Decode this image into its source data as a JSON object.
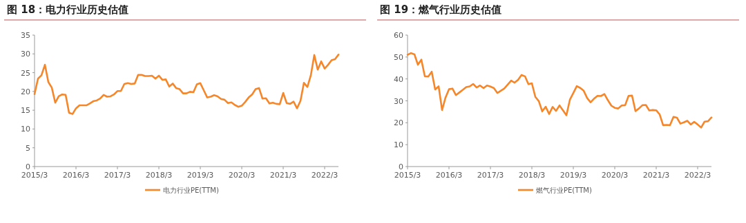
{
  "chart_data": [
    {
      "type": "line",
      "title": "图 18：电力行业历史估值",
      "x": [
        "2015-03",
        "2015-04",
        "2015-05",
        "2015-06",
        "2015-07",
        "2015-08",
        "2015-09",
        "2015-10",
        "2015-11",
        "2015-12",
        "2016-01",
        "2016-02",
        "2016-03",
        "2016-04",
        "2016-05",
        "2016-06",
        "2016-07",
        "2016-08",
        "2016-09",
        "2016-10",
        "2016-11",
        "2016-12",
        "2017-01",
        "2017-02",
        "2017-03",
        "2017-04",
        "2017-05",
        "2017-06",
        "2017-07",
        "2017-08",
        "2017-09",
        "2017-10",
        "2017-11",
        "2017-12",
        "2018-01",
        "2018-02",
        "2018-03",
        "2018-04",
        "2018-05",
        "2018-06",
        "2018-07",
        "2018-08",
        "2018-09",
        "2018-10",
        "2018-11",
        "2018-12",
        "2019-01",
        "2019-02",
        "2019-03",
        "2019-04",
        "2019-05",
        "2019-06",
        "2019-07",
        "2019-08",
        "2019-09",
        "2019-10",
        "2019-11",
        "2019-12",
        "2020-01",
        "2020-02",
        "2020-03",
        "2020-04",
        "2020-05",
        "2020-06",
        "2020-07",
        "2020-08",
        "2020-09",
        "2020-10",
        "2020-11",
        "2020-12",
        "2021-01",
        "2021-02",
        "2021-03",
        "2021-04",
        "2021-05",
        "2021-06",
        "2021-07",
        "2021-08",
        "2021-09",
        "2021-10",
        "2021-11",
        "2021-12",
        "2022-01",
        "2022-02",
        "2022-03",
        "2022-04",
        "2022-05",
        "2022-06",
        "2022-07"
      ],
      "series": [
        {
          "name": "电力行业PE(TTM)",
          "color": "#f5862a",
          "values": [
            19.3,
            23.4,
            24.3,
            27.1,
            22.5,
            21,
            17,
            18.7,
            19.2,
            19.1,
            14.3,
            14,
            15.5,
            16.3,
            16.3,
            16.3,
            16.8,
            17.4,
            17.6,
            18.1,
            19.1,
            18.6,
            18.7,
            19.2,
            20.1,
            20.1,
            22,
            22.2,
            22,
            22.1,
            24.4,
            24.4,
            24.1,
            24.1,
            24.2,
            23.4,
            24.2,
            23.1,
            23.2,
            21.3,
            22.1,
            20.9,
            20.6,
            19.5,
            19.5,
            19.9,
            19.8,
            21.9,
            22.2,
            20.3,
            18.4,
            18.6,
            19,
            18.7,
            18,
            17.8,
            16.9,
            17.1,
            16.4,
            15.9,
            16.2,
            17.2,
            18.4,
            19.2,
            20.6,
            20.9,
            18.1,
            18.2,
            16.8,
            17,
            16.7,
            16.6,
            19.6,
            16.9,
            16.7,
            17.3,
            15.5,
            17.5,
            22.3,
            21.2,
            24.3,
            29.7,
            25.8,
            28,
            26.1,
            27.1,
            28.3,
            28.6,
            29.8
          ]
        }
      ],
      "xlim": [
        "2015-03",
        "2022-07"
      ],
      "xticks": [
        {
          "value": "2015-03",
          "label": "2015/3"
        },
        {
          "value": "2016-03",
          "label": "2016/3"
        },
        {
          "value": "2017-03",
          "label": "2017/3"
        },
        {
          "value": "2018-03",
          "label": "2018/3"
        },
        {
          "value": "2019-03",
          "label": "2019/3"
        },
        {
          "value": "2020-03",
          "label": "2020/3"
        },
        {
          "value": "2021-03",
          "label": "2021/3"
        },
        {
          "value": "2022-03",
          "label": "2022/3"
        }
      ],
      "ylim": [
        0,
        35
      ],
      "yticks": [
        0,
        5,
        10,
        15,
        20,
        25,
        30,
        35
      ],
      "legend": "bottom",
      "marker": "none",
      "line_style": "solid"
    },
    {
      "type": "line",
      "title": "图 19：燃气行业历史估值",
      "x": [
        "2015-03",
        "2015-04",
        "2015-05",
        "2015-06",
        "2015-07",
        "2015-08",
        "2015-09",
        "2015-10",
        "2015-11",
        "2015-12",
        "2016-01",
        "2016-02",
        "2016-03",
        "2016-04",
        "2016-05",
        "2016-06",
        "2016-07",
        "2016-08",
        "2016-09",
        "2016-10",
        "2016-11",
        "2016-12",
        "2017-01",
        "2017-02",
        "2017-03",
        "2017-04",
        "2017-05",
        "2017-06",
        "2017-07",
        "2017-08",
        "2017-09",
        "2017-10",
        "2017-11",
        "2017-12",
        "2018-01",
        "2018-02",
        "2018-03",
        "2018-04",
        "2018-05",
        "2018-06",
        "2018-07",
        "2018-08",
        "2018-09",
        "2018-10",
        "2018-11",
        "2018-12",
        "2019-01",
        "2019-02",
        "2019-03",
        "2019-04",
        "2019-05",
        "2019-06",
        "2019-07",
        "2019-08",
        "2019-09",
        "2019-10",
        "2019-11",
        "2019-12",
        "2020-01",
        "2020-02",
        "2020-03",
        "2020-04",
        "2020-05",
        "2020-06",
        "2020-07",
        "2020-08",
        "2020-09",
        "2020-10",
        "2020-11",
        "2020-12",
        "2021-01",
        "2021-02",
        "2021-03",
        "2021-04",
        "2021-05",
        "2021-06",
        "2021-07",
        "2021-08",
        "2021-09",
        "2021-10",
        "2021-11",
        "2021-12",
        "2022-01",
        "2022-02",
        "2022-03",
        "2022-04",
        "2022-05",
        "2022-06",
        "2022-07"
      ],
      "series": [
        {
          "name": "燃气行业PE(TTM)",
          "color": "#f5862a",
          "values": [
            51,
            51.8,
            51.2,
            46.5,
            48.8,
            41.2,
            41.1,
            43.3,
            35.2,
            36.6,
            25.8,
            31.5,
            35.3,
            35.6,
            32.6,
            33.8,
            35,
            36.3,
            36.6,
            37.7,
            36.1,
            37,
            35.8,
            37,
            36.5,
            35.8,
            33.6,
            34.6,
            35.6,
            37.4,
            39.2,
            38.3,
            39.6,
            41.8,
            41.2,
            37.6,
            38,
            31.8,
            29.9,
            25.2,
            27.3,
            24,
            27.2,
            25.4,
            27.9,
            25.7,
            23.4,
            30.5,
            33.6,
            36.7,
            35.9,
            34.6,
            31.3,
            29.3,
            31,
            32.3,
            32.2,
            33.1,
            30.3,
            27.8,
            26.8,
            26.5,
            27.9,
            28,
            32.3,
            32.4,
            25.3,
            26.5,
            28,
            28.1,
            25.6,
            25.8,
            25.7,
            23.8,
            18.9,
            19,
            18.9,
            22.7,
            22.3,
            19.6,
            20.2,
            20.9,
            19.2,
            20.4,
            19.2,
            17.8,
            20.5,
            20.7,
            22.4
          ]
        }
      ],
      "xlim": [
        "2015-03",
        "2022-07"
      ],
      "xticks": [
        {
          "value": "2015-03",
          "label": "2015/3"
        },
        {
          "value": "2016-03",
          "label": "2016/3"
        },
        {
          "value": "2017-03",
          "label": "2017/3"
        },
        {
          "value": "2018-03",
          "label": "2018/3"
        },
        {
          "value": "2019-03",
          "label": "2019/3"
        },
        {
          "value": "2020-03",
          "label": "2020/3"
        },
        {
          "value": "2021-03",
          "label": "2021/3"
        },
        {
          "value": "2022-03",
          "label": "2022/3"
        }
      ],
      "ylim": [
        0,
        60
      ],
      "yticks": [
        0,
        10,
        20,
        30,
        40,
        50,
        60
      ],
      "legend": "bottom",
      "marker": "none",
      "line_style": "solid"
    }
  ]
}
